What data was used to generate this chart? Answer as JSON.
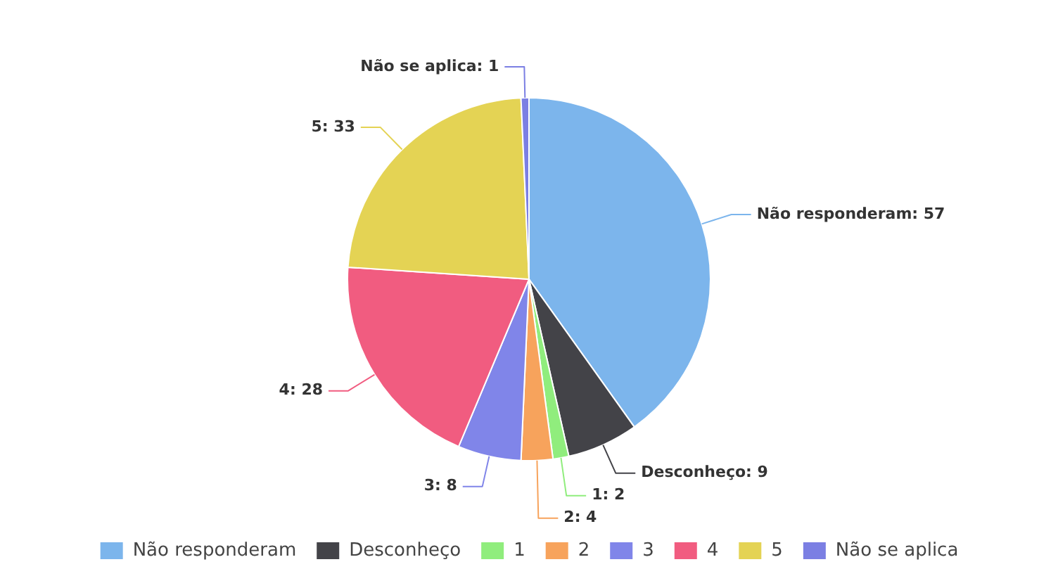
{
  "chart_data": {
    "type": "pie",
    "categories": [
      "Não responderam",
      "Desconheço",
      "1",
      "2",
      "3",
      "4",
      "5",
      "Não se aplica"
    ],
    "values": [
      57,
      9,
      2,
      4,
      8,
      28,
      33,
      1
    ],
    "colors": [
      "#7cb5ec",
      "#434348",
      "#90ed7d",
      "#f7a35c",
      "#8085e9",
      "#f15c80",
      "#e4d354",
      "#7b7fe3"
    ],
    "value_labels": [
      "Não responderam: 57",
      "Desconheço: 9",
      "1: 2",
      "2: 4",
      "3: 8",
      "4: 28",
      "5: 33",
      "Não se aplica: 1"
    ],
    "legend": "bottom"
  }
}
